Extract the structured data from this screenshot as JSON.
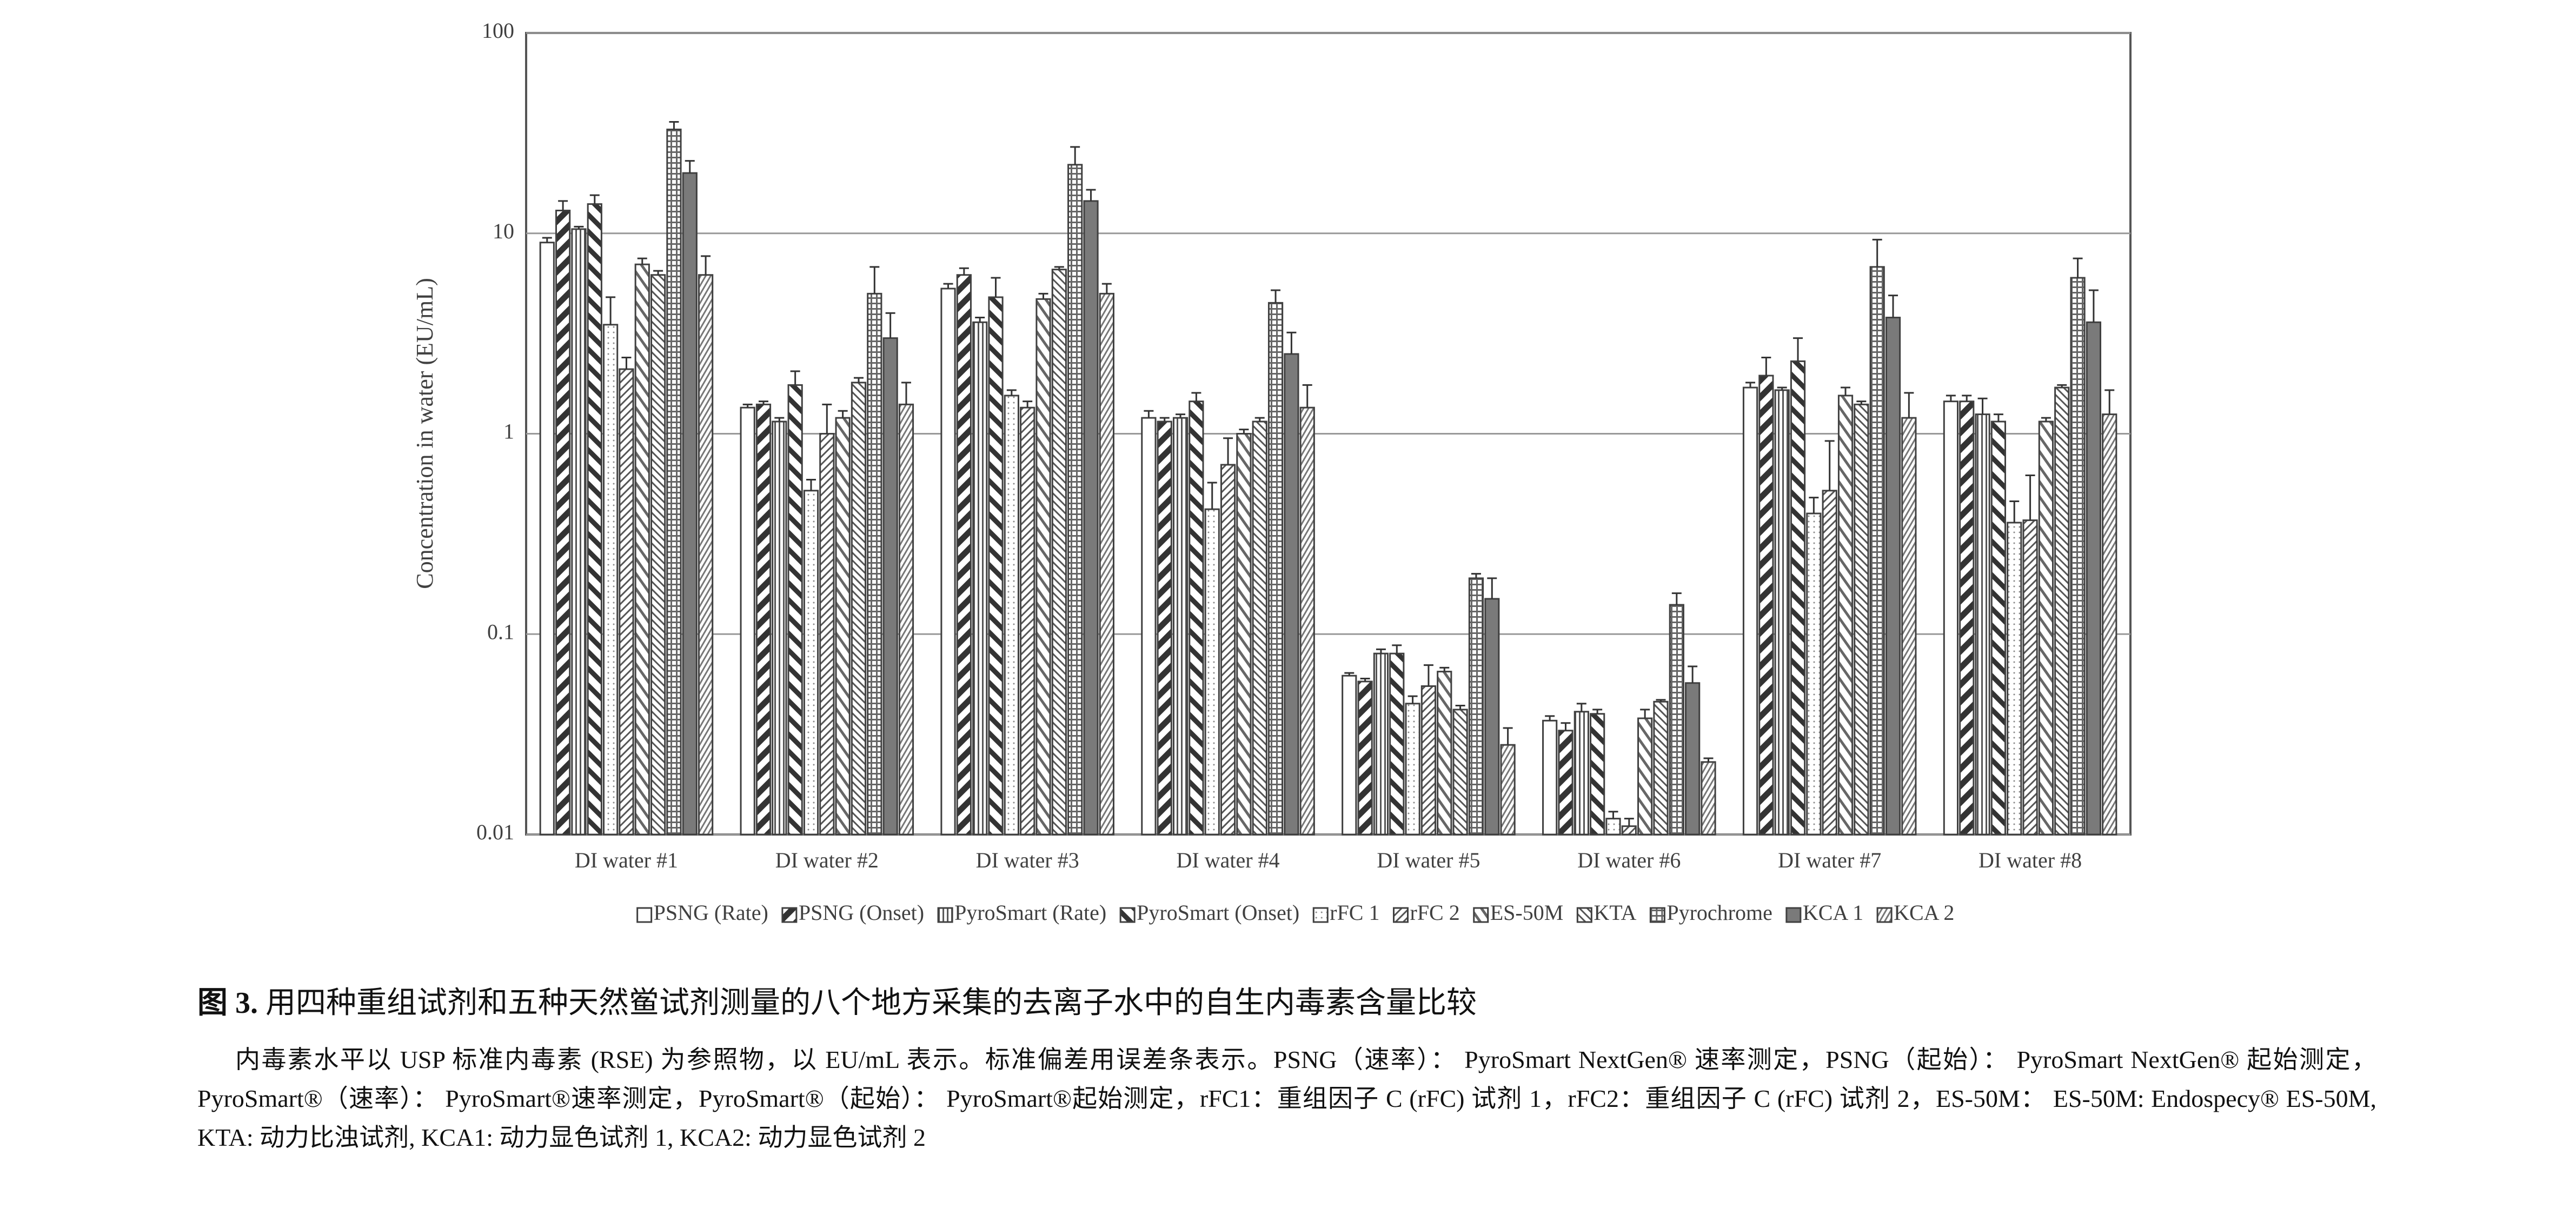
{
  "chart_data": {
    "type": "bar",
    "y_label": "Concentration in water (EU/mL)",
    "log_scale": true,
    "grid": true,
    "ylim": [
      0.01,
      100
    ],
    "yticks": [
      0.01,
      0.1,
      1,
      10,
      100
    ],
    "categories": [
      "DI water #1",
      "DI water #2",
      "DI water #3",
      "DI water #4",
      "DI water #5",
      "DI water #6",
      "DI water #7",
      "DI water #8"
    ],
    "series": [
      {
        "name": "PSNG (Rate)",
        "color": "#404040",
        "values": [
          9,
          1.35,
          5.3,
          1.2,
          0.062,
          0.037,
          1.7,
          1.45
        ],
        "errors": [
          0.5,
          0.05,
          0.3,
          0.1,
          0.002,
          0.002,
          0.1,
          0.1
        ]
      },
      {
        "name": "PSNG (Onset)",
        "color": "#404040",
        "values": [
          13,
          1.4,
          6.2,
          1.15,
          0.058,
          0.033,
          1.95,
          1.45
        ],
        "errors": [
          1.5,
          0.05,
          0.5,
          0.05,
          0.002,
          0.003,
          0.45,
          0.1
        ]
      },
      {
        "name": "PyroSmart (Rate)",
        "color": "#404040",
        "values": [
          10.5,
          1.15,
          3.6,
          1.2,
          0.08,
          0.041,
          1.65,
          1.25
        ],
        "errors": [
          0.3,
          0.05,
          0.2,
          0.05,
          0.004,
          0.004,
          0.05,
          0.25
        ]
      },
      {
        "name": "PyroSmart (Onset)",
        "color": "#404040",
        "values": [
          14,
          1.75,
          4.8,
          1.45,
          0.08,
          0.04,
          2.3,
          1.15
        ],
        "errors": [
          1.5,
          0.3,
          1.2,
          0.15,
          0.008,
          0.002,
          0.7,
          0.1
        ]
      },
      {
        "name": "rFC 1",
        "color": "#404040",
        "values": [
          3.5,
          0.52,
          1.55,
          0.42,
          0.045,
          0.012,
          0.4,
          0.36
        ],
        "errors": [
          1.3,
          0.07,
          0.1,
          0.15,
          0.004,
          0.001,
          0.08,
          0.1
        ]
      },
      {
        "name": "rFC 2",
        "color": "#404040",
        "values": [
          2.1,
          1.0,
          1.35,
          0.7,
          0.055,
          0.011,
          0.52,
          0.37
        ],
        "errors": [
          0.3,
          0.4,
          0.1,
          0.25,
          0.015,
          0.001,
          0.4,
          0.25
        ]
      },
      {
        "name": "ES-50M",
        "color": "#404040",
        "values": [
          7,
          1.2,
          4.7,
          1.0,
          0.065,
          0.038,
          1.55,
          1.15
        ],
        "errors": [
          0.5,
          0.1,
          0.3,
          0.05,
          0.003,
          0.004,
          0.15,
          0.05
        ]
      },
      {
        "name": "KTA",
        "color": "#404040",
        "values": [
          6.2,
          1.8,
          6.6,
          1.15,
          0.042,
          0.046,
          1.4,
          1.7
        ],
        "errors": [
          0.3,
          0.1,
          0.2,
          0.05,
          0.002,
          0.001,
          0.05,
          0.05
        ]
      },
      {
        "name": "Pyrochrome",
        "color": "#404040",
        "values": [
          33,
          5.0,
          22,
          4.5,
          0.19,
          0.14,
          6.8,
          6.0
        ],
        "errors": [
          3,
          1.8,
          5,
          0.7,
          0.01,
          0.02,
          2.5,
          1.5
        ]
      },
      {
        "name": "KCA 1",
        "color": "#404040",
        "values": [
          20,
          3.0,
          14.5,
          2.5,
          0.15,
          0.057,
          3.8,
          3.6
        ],
        "errors": [
          3,
          1.0,
          2,
          0.7,
          0.04,
          0.012,
          1.1,
          1.6
        ]
      },
      {
        "name": "KCA 2",
        "color": "#404040",
        "values": [
          6.2,
          1.4,
          5.0,
          1.35,
          0.028,
          0.023,
          1.2,
          1.25
        ],
        "errors": [
          1.5,
          0.4,
          0.6,
          0.4,
          0.006,
          0.001,
          0.4,
          0.4
        ]
      }
    ]
  },
  "caption": {
    "label": "图 3.",
    "title": "用四种重组试剂和五种天然鲎试剂测量的八个地方采集的去离子水中的自生内毒素含量比较",
    "text": "内毒素水平以 USP 标准内毒素 (RSE) 为参照物，以 EU/mL 表示。标准偏差用误差条表示。PSNG（速率）： PyroSmart NextGen® 速率测定，PSNG（起始）： PyroSmart NextGen® 起始测定， PyroSmart®（速率）： PyroSmart®速率测定，PyroSmart®（起始）： PyroSmart®起始测定，rFC1：重组因子 C (rFC) 试剂 1，rFC2：重组因子 C (rFC) 试剂 2，ES-50M： ES-50M: Endospecy® ES-50M, KTA: 动力比浊试剂, KCA1: 动力显色试剂 1, KCA2: 动力显色试剂 2"
  }
}
